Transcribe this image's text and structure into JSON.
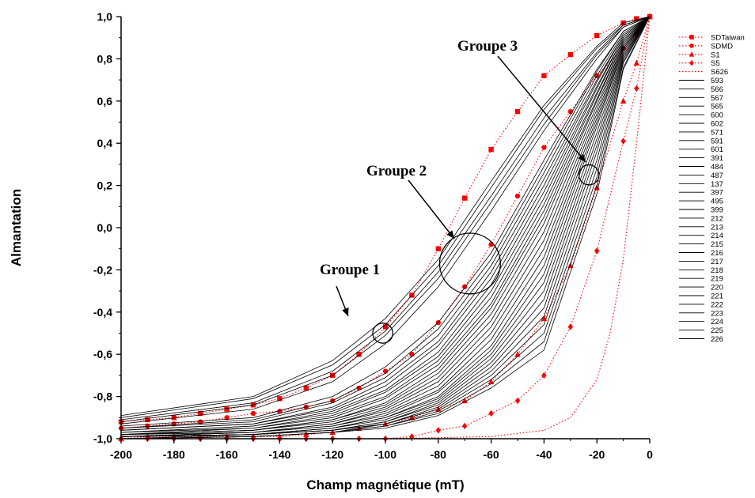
{
  "chart_data": {
    "type": "line",
    "title": "",
    "xlabel": "Champ magnétique (mT)",
    "ylabel": "Almantation",
    "xlim": [
      -200,
      0
    ],
    "ylim": [
      -1.0,
      1.0
    ],
    "x_ticks": [
      "-200",
      "-180",
      "-160",
      "-140",
      "-120",
      "-100",
      "-80",
      "-60",
      "-40",
      "-20",
      "0"
    ],
    "y_ticks": [
      "-1,0",
      "-0,8",
      "-0,6",
      "-0,4",
      "-0,2",
      "0,0",
      "0,2",
      "0,4",
      "0,6",
      "0,8",
      "1,0"
    ],
    "grid": false,
    "legend_position": "right",
    "annotations": [
      {
        "text": "Groupe 1",
        "circle_center": [
          -101,
          -0.5
        ],
        "circle_radius_mt": 3.8
      },
      {
        "text": "Groupe 2",
        "circle_center": [
          -68,
          -0.17
        ],
        "circle_radius_mt": 11.5
      },
      {
        "text": "Groupe 3",
        "circle_center": [
          -23,
          0.25
        ],
        "circle_radius_mt": 3.8
      }
    ],
    "series": [
      {
        "name": "SDTaiwan",
        "color": "#ff0000",
        "marker": "square",
        "style": "dotted",
        "x": [
          -200,
          -190,
          -180,
          -170,
          -160,
          -150,
          -140,
          -130,
          -120,
          -110,
          -100,
          -90,
          -80,
          -70,
          -60,
          -50,
          -40,
          -30,
          -20,
          -10,
          -5,
          0
        ],
        "y": [
          -0.92,
          -0.91,
          -0.9,
          -0.88,
          -0.86,
          -0.84,
          -0.81,
          -0.76,
          -0.7,
          -0.6,
          -0.47,
          -0.32,
          -0.1,
          0.14,
          0.37,
          0.55,
          0.72,
          0.82,
          0.91,
          0.97,
          0.99,
          1.0
        ]
      },
      {
        "name": "SDMD",
        "color": "#ff0000",
        "marker": "circle",
        "style": "dotted",
        "x": [
          -200,
          -190,
          -180,
          -170,
          -160,
          -150,
          -140,
          -130,
          -120,
          -110,
          -100,
          -90,
          -80,
          -70,
          -60,
          -50,
          -40,
          -30,
          -20,
          -10,
          -5,
          0
        ],
        "y": [
          -0.95,
          -0.94,
          -0.93,
          -0.92,
          -0.9,
          -0.88,
          -0.87,
          -0.85,
          -0.82,
          -0.76,
          -0.68,
          -0.6,
          -0.45,
          -0.28,
          -0.08,
          0.15,
          0.38,
          0.55,
          0.72,
          0.85,
          0.92,
          1.0
        ]
      },
      {
        "name": "S1",
        "color": "#ff0000",
        "marker": "triangle",
        "style": "dotted",
        "x": [
          -200,
          -190,
          -180,
          -170,
          -160,
          -150,
          -140,
          -130,
          -120,
          -110,
          -100,
          -90,
          -80,
          -70,
          -60,
          -50,
          -40,
          -30,
          -20,
          -10,
          -5,
          0
        ],
        "y": [
          -1.0,
          -0.99,
          -0.99,
          -0.99,
          -0.99,
          -0.99,
          -0.99,
          -0.98,
          -0.97,
          -0.95,
          -0.93,
          -0.9,
          -0.86,
          -0.82,
          -0.73,
          -0.6,
          -0.43,
          -0.18,
          0.19,
          0.6,
          0.78,
          1.0
        ]
      },
      {
        "name": "S5",
        "color": "#ff0000",
        "marker": "diamond",
        "style": "dotted",
        "x": [
          -200,
          -190,
          -180,
          -170,
          -160,
          -150,
          -140,
          -130,
          -120,
          -110,
          -100,
          -90,
          -80,
          -70,
          -60,
          -50,
          -40,
          -30,
          -20,
          -10,
          -5,
          0
        ],
        "y": [
          -1.0,
          -1.0,
          -1.0,
          -1.0,
          -1.0,
          -1.0,
          -1.0,
          -1.0,
          -1.0,
          -1.0,
          -1.0,
          -0.99,
          -0.96,
          -0.94,
          -0.88,
          -0.82,
          -0.7,
          -0.47,
          -0.11,
          0.41,
          0.66,
          1.0
        ]
      },
      {
        "name": "S626",
        "color": "#ff0000",
        "marker": "none",
        "style": "dotted",
        "x": [
          -200,
          -100,
          -60,
          -40,
          -30,
          -20,
          -15,
          -10,
          -5,
          0
        ],
        "y": [
          -1.0,
          -1.0,
          -0.99,
          -0.96,
          -0.9,
          -0.72,
          -0.5,
          -0.15,
          0.4,
          1.0
        ]
      },
      {
        "name": "593",
        "color": "#000000",
        "style": "solid",
        "x": [
          -200,
          -150,
          -120,
          -100,
          -80,
          -60,
          -40,
          -20,
          -10,
          0
        ],
        "y": [
          -0.89,
          -0.8,
          -0.63,
          -0.43,
          -0.15,
          0.22,
          0.58,
          0.86,
          0.97,
          1.0
        ]
      },
      {
        "name": "566",
        "color": "#000000",
        "style": "solid",
        "x": [
          -200,
          -150,
          -120,
          -100,
          -80,
          -60,
          -40,
          -20,
          -10,
          0
        ],
        "y": [
          -0.9,
          -0.81,
          -0.65,
          -0.46,
          -0.18,
          0.19,
          0.56,
          0.85,
          0.96,
          1.0
        ]
      },
      {
        "name": "567",
        "color": "#000000",
        "style": "solid",
        "x": [
          -200,
          -150,
          -120,
          -100,
          -80,
          -60,
          -40,
          -20,
          -10,
          0
        ],
        "y": [
          -0.91,
          -0.83,
          -0.68,
          -0.49,
          -0.21,
          0.15,
          0.52,
          0.83,
          0.96,
          1.0
        ]
      },
      {
        "name": "565",
        "color": "#000000",
        "style": "solid",
        "x": [
          -200,
          -150,
          -120,
          -100,
          -80,
          -60,
          -40,
          -20,
          -10,
          0
        ],
        "y": [
          -0.92,
          -0.84,
          -0.7,
          -0.51,
          -0.24,
          0.12,
          0.49,
          0.82,
          0.95,
          1.0
        ]
      },
      {
        "name": "600",
        "color": "#000000",
        "style": "solid",
        "x": [
          -200,
          -150,
          -120,
          -100,
          -80,
          -60,
          -40,
          -20,
          -10,
          0
        ],
        "y": [
          -0.93,
          -0.86,
          -0.73,
          -0.55,
          -0.28,
          0.08,
          0.46,
          0.8,
          0.95,
          1.0
        ]
      },
      {
        "name": "602",
        "color": "#000000",
        "style": "solid",
        "x": [
          -200,
          -150,
          -120,
          -100,
          -80,
          -60,
          -40,
          -20,
          -10,
          0
        ],
        "y": [
          -0.94,
          -0.9,
          -0.8,
          -0.66,
          -0.45,
          -0.12,
          0.32,
          0.75,
          0.93,
          1.0
        ]
      },
      {
        "name": "571",
        "color": "#000000",
        "style": "solid",
        "x": [
          -200,
          -150,
          -120,
          -100,
          -80,
          -60,
          -40,
          -20,
          -10,
          0
        ],
        "y": [
          -0.95,
          -0.91,
          -0.82,
          -0.69,
          -0.48,
          -0.15,
          0.29,
          0.74,
          0.93,
          1.0
        ]
      },
      {
        "name": "591",
        "color": "#000000",
        "style": "solid",
        "x": [
          -200,
          -150,
          -120,
          -100,
          -80,
          -60,
          -40,
          -20,
          -10,
          0
        ],
        "y": [
          -0.95,
          -0.92,
          -0.83,
          -0.71,
          -0.51,
          -0.18,
          0.26,
          0.72,
          0.92,
          1.0
        ]
      },
      {
        "name": "601",
        "color": "#000000",
        "style": "solid",
        "x": [
          -200,
          -150,
          -120,
          -100,
          -80,
          -60,
          -40,
          -20,
          -10,
          0
        ],
        "y": [
          -0.96,
          -0.93,
          -0.85,
          -0.73,
          -0.54,
          -0.21,
          0.23,
          0.7,
          0.91,
          1.0
        ]
      },
      {
        "name": "391",
        "color": "#000000",
        "style": "solid",
        "x": [
          -200,
          -150,
          -120,
          -100,
          -80,
          -60,
          -40,
          -20,
          -10,
          0
        ],
        "y": [
          -0.96,
          -0.93,
          -0.86,
          -0.75,
          -0.56,
          -0.24,
          0.2,
          0.69,
          0.91,
          1.0
        ]
      },
      {
        "name": "484",
        "color": "#000000",
        "style": "solid",
        "x": [
          -200,
          -150,
          -120,
          -100,
          -80,
          -60,
          -40,
          -20,
          -10,
          0
        ],
        "y": [
          -0.97,
          -0.94,
          -0.87,
          -0.77,
          -0.59,
          -0.27,
          0.17,
          0.67,
          0.9,
          1.0
        ]
      },
      {
        "name": "487",
        "color": "#000000",
        "style": "solid",
        "x": [
          -200,
          -150,
          -120,
          -100,
          -80,
          -60,
          -40,
          -20,
          -10,
          0
        ],
        "y": [
          -0.97,
          -0.94,
          -0.88,
          -0.78,
          -0.61,
          -0.3,
          0.14,
          0.66,
          0.9,
          1.0
        ]
      },
      {
        "name": "137",
        "color": "#000000",
        "style": "solid",
        "x": [
          -200,
          -150,
          -120,
          -100,
          -80,
          -60,
          -40,
          -20,
          -10,
          0
        ],
        "y": [
          -0.97,
          -0.95,
          -0.89,
          -0.8,
          -0.63,
          -0.33,
          0.11,
          0.64,
          0.89,
          1.0
        ]
      },
      {
        "name": "397",
        "color": "#000000",
        "style": "solid",
        "x": [
          -200,
          -150,
          -120,
          -100,
          -80,
          -60,
          -40,
          -20,
          -10,
          0
        ],
        "y": [
          -0.98,
          -0.95,
          -0.9,
          -0.81,
          -0.65,
          -0.36,
          0.08,
          0.63,
          0.89,
          1.0
        ]
      },
      {
        "name": "495",
        "color": "#000000",
        "style": "solid",
        "x": [
          -200,
          -150,
          -120,
          -100,
          -80,
          -60,
          -40,
          -20,
          -10,
          0
        ],
        "y": [
          -0.98,
          -0.96,
          -0.91,
          -0.83,
          -0.67,
          -0.38,
          0.05,
          0.61,
          0.88,
          1.0
        ]
      },
      {
        "name": "399",
        "color": "#000000",
        "style": "solid",
        "x": [
          -200,
          -150,
          -120,
          -100,
          -80,
          -60,
          -40,
          -20,
          -10,
          0
        ],
        "y": [
          -0.98,
          -0.96,
          -0.91,
          -0.84,
          -0.69,
          -0.41,
          0.02,
          0.6,
          0.88,
          1.0
        ]
      },
      {
        "name": "212",
        "color": "#000000",
        "style": "solid",
        "x": [
          -200,
          -150,
          -120,
          -100,
          -80,
          -60,
          -40,
          -20,
          -10,
          0
        ],
        "y": [
          -0.98,
          -0.96,
          -0.92,
          -0.85,
          -0.71,
          -0.44,
          -0.02,
          0.58,
          0.87,
          1.0
        ]
      },
      {
        "name": "213",
        "color": "#000000",
        "style": "solid",
        "x": [
          -200,
          -150,
          -120,
          -100,
          -80,
          -60,
          -40,
          -20,
          -10,
          0
        ],
        "y": [
          -0.98,
          -0.97,
          -0.93,
          -0.86,
          -0.73,
          -0.47,
          -0.06,
          0.56,
          0.87,
          1.0
        ]
      },
      {
        "name": "214",
        "color": "#000000",
        "style": "solid",
        "x": [
          -200,
          -150,
          -120,
          -100,
          -80,
          -60,
          -40,
          -20,
          -10,
          0
        ],
        "y": [
          -0.99,
          -0.97,
          -0.93,
          -0.87,
          -0.75,
          -0.5,
          -0.1,
          0.54,
          0.86,
          1.0
        ]
      },
      {
        "name": "215",
        "color": "#000000",
        "style": "solid",
        "x": [
          -200,
          -150,
          -120,
          -100,
          -80,
          -60,
          -40,
          -20,
          -10,
          0
        ],
        "y": [
          -0.99,
          -0.97,
          -0.94,
          -0.88,
          -0.77,
          -0.53,
          -0.14,
          0.52,
          0.86,
          1.0
        ]
      },
      {
        "name": "216",
        "color": "#000000",
        "style": "solid",
        "x": [
          -200,
          -150,
          -120,
          -100,
          -80,
          -60,
          -40,
          -20,
          -10,
          0
        ],
        "y": [
          -0.99,
          -0.97,
          -0.94,
          -0.89,
          -0.78,
          -0.56,
          -0.18,
          0.5,
          0.85,
          1.0
        ]
      },
      {
        "name": "217",
        "color": "#000000",
        "style": "solid",
        "x": [
          -200,
          -150,
          -120,
          -100,
          -80,
          -60,
          -40,
          -20,
          -10,
          0
        ],
        "y": [
          -0.99,
          -0.98,
          -0.95,
          -0.9,
          -0.8,
          -0.58,
          -0.22,
          0.48,
          0.85,
          1.0
        ]
      },
      {
        "name": "218",
        "color": "#000000",
        "style": "solid",
        "x": [
          -200,
          -150,
          -120,
          -100,
          -80,
          -60,
          -40,
          -20,
          -10,
          0
        ],
        "y": [
          -0.99,
          -0.98,
          -0.95,
          -0.9,
          -0.81,
          -0.6,
          -0.26,
          0.45,
          0.84,
          1.0
        ]
      },
      {
        "name": "219",
        "color": "#000000",
        "style": "solid",
        "x": [
          -200,
          -150,
          -120,
          -100,
          -80,
          -60,
          -40,
          -20,
          -10,
          0
        ],
        "y": [
          -0.99,
          -0.98,
          -0.95,
          -0.91,
          -0.82,
          -0.62,
          -0.3,
          0.42,
          0.83,
          1.0
        ]
      },
      {
        "name": "220",
        "color": "#000000",
        "style": "solid",
        "x": [
          -200,
          -150,
          -120,
          -100,
          -80,
          -60,
          -40,
          -20,
          -10,
          0
        ],
        "y": [
          -0.99,
          -0.98,
          -0.96,
          -0.92,
          -0.83,
          -0.64,
          -0.34,
          0.39,
          0.82,
          1.0
        ]
      },
      {
        "name": "221",
        "color": "#000000",
        "style": "solid",
        "x": [
          -200,
          -150,
          -120,
          -100,
          -80,
          -60,
          -40,
          -20,
          -10,
          0
        ],
        "y": [
          -0.99,
          -0.98,
          -0.96,
          -0.92,
          -0.84,
          -0.66,
          -0.38,
          0.36,
          0.81,
          1.0
        ]
      },
      {
        "name": "222",
        "color": "#000000",
        "style": "solid",
        "x": [
          -200,
          -150,
          -120,
          -100,
          -80,
          -60,
          -40,
          -20,
          -10,
          0
        ],
        "y": [
          -1.0,
          -0.98,
          -0.96,
          -0.93,
          -0.85,
          -0.68,
          -0.42,
          0.32,
          0.8,
          1.0
        ]
      },
      {
        "name": "223",
        "color": "#000000",
        "style": "solid",
        "x": [
          -200,
          -150,
          -120,
          -100,
          -80,
          -60,
          -40,
          -20,
          -10,
          0
        ],
        "y": [
          -1.0,
          -0.99,
          -0.97,
          -0.93,
          -0.86,
          -0.7,
          -0.46,
          0.28,
          0.79,
          1.0
        ]
      },
      {
        "name": "224",
        "color": "#000000",
        "style": "solid",
        "x": [
          -200,
          -150,
          -120,
          -100,
          -80,
          -60,
          -40,
          -20,
          -10,
          0
        ],
        "y": [
          -1.0,
          -0.99,
          -0.97,
          -0.94,
          -0.87,
          -0.72,
          -0.5,
          0.24,
          0.78,
          1.0
        ]
      },
      {
        "name": "225",
        "color": "#000000",
        "style": "solid",
        "x": [
          -200,
          -150,
          -120,
          -100,
          -80,
          -60,
          -40,
          -20,
          -10,
          0
        ],
        "y": [
          -1.0,
          -0.99,
          -0.97,
          -0.94,
          -0.88,
          -0.74,
          -0.54,
          0.2,
          0.76,
          1.0
        ]
      },
      {
        "name": "226",
        "color": "#000000",
        "style": "solid",
        "x": [
          -200,
          -150,
          -120,
          -100,
          -80,
          -60,
          -40,
          -20,
          -10,
          0
        ],
        "y": [
          -1.0,
          -0.99,
          -0.97,
          -0.95,
          -0.89,
          -0.76,
          -0.58,
          0.16,
          0.75,
          1.0
        ]
      }
    ]
  }
}
